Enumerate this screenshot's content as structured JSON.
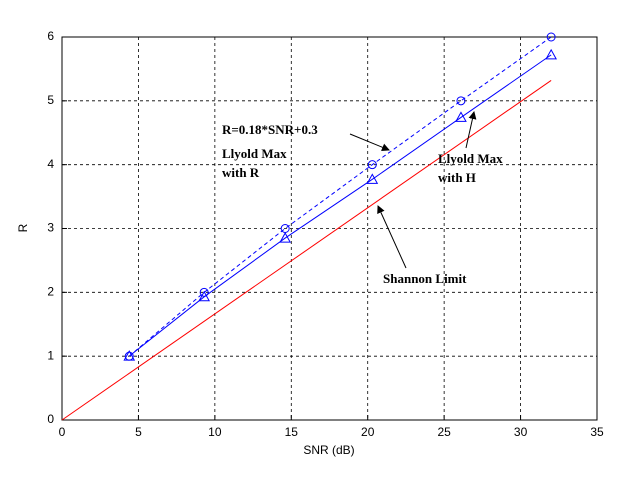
{
  "chart_data": {
    "type": "line",
    "xlabel": "SNR (dB)",
    "ylabel": "R",
    "xlim": [
      0,
      35
    ],
    "xticks": [
      0,
      5,
      10,
      15,
      20,
      25,
      30,
      35
    ],
    "ylim": [
      0,
      6
    ],
    "yticks": [
      0,
      1,
      2,
      3,
      4,
      5,
      6
    ],
    "grid": true,
    "series": [
      {
        "color": "#0000ff",
        "dash": true,
        "marker": "circle",
        "x": [
          4.4,
          9.3,
          14.6,
          20.3,
          26.1,
          32
        ],
        "values": [
          1,
          2,
          3,
          4,
          5,
          6
        ]
      },
      {
        "color": "#0000ff",
        "dash": false,
        "marker": "triangle",
        "x": [
          4.4,
          9.3,
          14.6,
          20.3,
          26.1,
          32
        ],
        "values": [
          1,
          1.93,
          2.85,
          3.77,
          4.74,
          5.72
        ]
      },
      {
        "color": "#ff0000",
        "dash": false,
        "marker": "none",
        "x": [
          0,
          32
        ],
        "values": [
          0,
          5.32
        ]
      }
    ],
    "annotations": [
      "R=0.18*SNR+0.3",
      "Llyold Max",
      "with R",
      "Llyold Max",
      "with H",
      "Shannon Limit"
    ]
  }
}
